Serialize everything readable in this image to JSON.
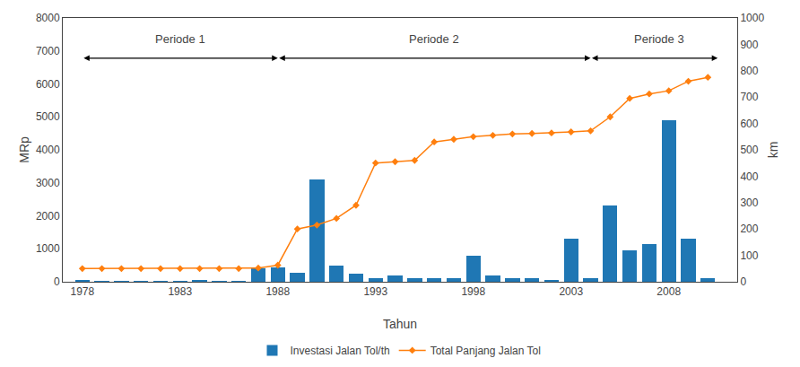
{
  "chart_data": {
    "type": "bar",
    "x": [
      1978,
      1979,
      1980,
      1981,
      1982,
      1983,
      1984,
      1985,
      1986,
      1987,
      1988,
      1989,
      1990,
      1991,
      1992,
      1993,
      1994,
      1995,
      1996,
      1997,
      1998,
      1999,
      2000,
      2001,
      2002,
      2003,
      2004,
      2005,
      2006,
      2007,
      2008,
      2009,
      2010
    ],
    "series": [
      {
        "name": "Investasi Jalan Tol/th",
        "type": "bar",
        "values": [
          30,
          10,
          10,
          10,
          10,
          10,
          50,
          20,
          10,
          400,
          430,
          280,
          3100,
          480,
          250,
          100,
          180,
          100,
          100,
          100,
          800,
          200,
          100,
          100,
          50,
          1300,
          100,
          2300,
          950,
          1150,
          4900,
          1300,
          100
        ]
      },
      {
        "name": "Total Panjang Jalan Tol",
        "type": "line",
        "axis": "y2",
        "marker": "diamond",
        "values": [
          50,
          50,
          50,
          50,
          50,
          50,
          50,
          50,
          50,
          52,
          63,
          200,
          215,
          240,
          290,
          450,
          455,
          460,
          530,
          540,
          550,
          555,
          560,
          562,
          564,
          568,
          572,
          625,
          695,
          712,
          724,
          760,
          775
        ]
      }
    ],
    "x_label": "Tahun",
    "y_label": "MRp",
    "y2_label": "km",
    "xlim": [
      1977,
      2011.5
    ],
    "xticks": [
      1978,
      1983,
      1988,
      1993,
      1998,
      2003,
      2008
    ],
    "ylim": [
      0,
      8000
    ],
    "yticks": [
      0,
      1000,
      2000,
      3000,
      4000,
      5000,
      6000,
      7000,
      8000
    ],
    "y2lim": [
      0,
      1000
    ],
    "y2ticks": [
      0,
      100,
      200,
      300,
      400,
      500,
      600,
      700,
      800,
      900,
      1000
    ],
    "annotations": [
      {
        "text": "Periode 1",
        "x": 1983,
        "y": 7100,
        "arrow": {
          "x0": 1978,
          "x1": 1988,
          "y": 6780
        }
      },
      {
        "text": "Periode 2",
        "x": 1996,
        "y": 7100,
        "arrow": {
          "x0": 1988,
          "x1": 2004,
          "y": 6780
        }
      },
      {
        "text": "Periode 3",
        "x": 2007.5,
        "y": 7100,
        "arrow": {
          "x0": 2004,
          "x1": 2010.5,
          "y": 6780
        }
      }
    ],
    "grid": false,
    "legend": "bottom"
  }
}
